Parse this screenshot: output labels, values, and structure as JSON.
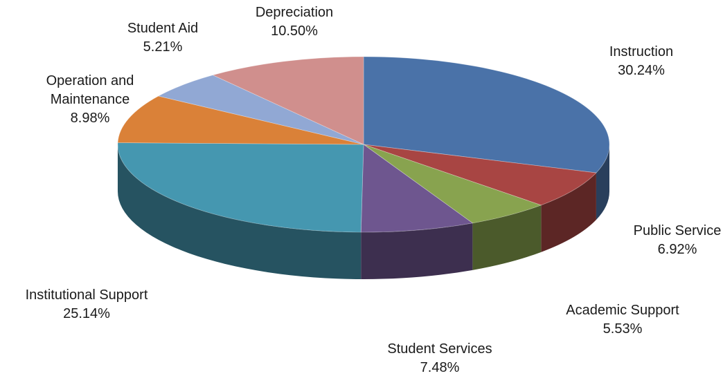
{
  "chart_data": {
    "type": "pie",
    "title": "",
    "slices": [
      {
        "label": "Instruction",
        "value": 30.24,
        "display": "30.24%",
        "color": "#4a72a8"
      },
      {
        "label": "Public Service",
        "value": 6.92,
        "display": "6.92%",
        "color": "#a84543"
      },
      {
        "label": "Academic Support",
        "value": 5.53,
        "display": "5.53%",
        "color": "#88a34f"
      },
      {
        "label": "Student Services",
        "value": 7.48,
        "display": "7.48%",
        "color": "#6e568f"
      },
      {
        "label": "Institutional Support",
        "value": 25.14,
        "display": "25.14%",
        "color": "#4597b0"
      },
      {
        "label": "Operation and Maintenance",
        "value": 8.98,
        "display": "8.98%",
        "color": "#da8138"
      },
      {
        "label": "Student Aid",
        "value": 5.21,
        "display": "5.21%",
        "color": "#91a8d4"
      },
      {
        "label": "Depreciation",
        "value": 10.5,
        "display": "10.50%",
        "color": "#d08f8d"
      }
    ]
  }
}
